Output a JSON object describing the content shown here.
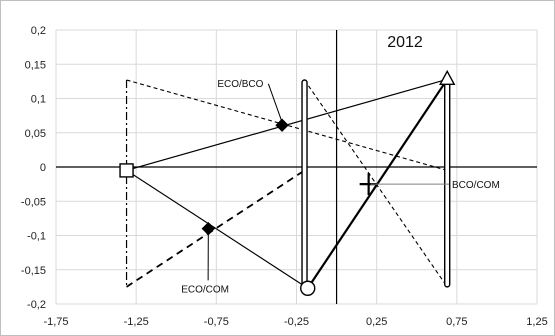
{
  "chart_data": {
    "type": "scatter",
    "title": "2012",
    "xlabel": "",
    "ylabel": "",
    "xlim": [
      -1.75,
      1.25
    ],
    "ylim": [
      -0.2,
      0.2
    ],
    "x_ticks": [
      "-1,75",
      "-1,25",
      "-0,75",
      "-0,25",
      "0,25",
      "0,75",
      "1,25"
    ],
    "x_tick_values": [
      -1.75,
      -1.25,
      -0.75,
      -0.25,
      0.25,
      0.75,
      1.25
    ],
    "y_ticks": [
      "0,2",
      "0,15",
      "0,1",
      "0,05",
      "0",
      "-0,05",
      "-0,1",
      "-0,15",
      "-0,2"
    ],
    "y_tick_values": [
      0.2,
      0.15,
      0.1,
      0.05,
      0,
      -0.05,
      -0.1,
      -0.15,
      -0.2
    ],
    "grid": true,
    "axis_lines": {
      "x0": 0,
      "y0": 0
    },
    "segments": [
      {
        "x1": -1.31,
        "y1": -0.005,
        "x2": 0.69,
        "y2": 0.128,
        "style": "solid"
      },
      {
        "x1": -1.31,
        "y1": -0.005,
        "x2": -0.18,
        "y2": -0.177,
        "style": "solid"
      },
      {
        "x1": -0.18,
        "y1": -0.177,
        "x2": 0.69,
        "y2": 0.128,
        "style": "solid-thick"
      },
      {
        "x1": -1.31,
        "y1": 0.127,
        "x2": 0.69,
        "y2": -0.005,
        "style": "dashed"
      },
      {
        "x1": -1.31,
        "y1": -0.175,
        "x2": -0.2,
        "y2": -0.005,
        "style": "dashed-thick"
      },
      {
        "x1": -0.2,
        "y1": 0.127,
        "x2": 0.69,
        "y2": -0.175,
        "style": "dashed"
      },
      {
        "x1": -1.31,
        "y1": 0.127,
        "x2": -1.31,
        "y2": -0.175,
        "style": "dashdot"
      }
    ],
    "bars": [
      {
        "x": -0.2,
        "y_top": 0.127,
        "y_bottom": -0.175
      },
      {
        "x": 0.69,
        "y_top": 0.127,
        "y_bottom": -0.175
      }
    ],
    "points": [
      {
        "x": -1.31,
        "y": -0.005,
        "marker": "square"
      },
      {
        "x": 0.69,
        "y": 0.128,
        "marker": "triangle"
      },
      {
        "x": -0.18,
        "y": -0.177,
        "marker": "circle"
      },
      {
        "x": -0.34,
        "y": 0.061,
        "marker": "diamond"
      },
      {
        "x": -0.8,
        "y": -0.09,
        "marker": "diamond"
      },
      {
        "x": 0.2,
        "y": -0.025,
        "marker": "plus"
      }
    ],
    "annotations": [
      {
        "text": "ECO/BCO",
        "x": -0.34,
        "y": 0.061,
        "label_x": -0.6,
        "label_y": 0.117
      },
      {
        "text": "ECO/COM",
        "x": -0.8,
        "y": -0.09,
        "label_x": -0.82,
        "label_y": -0.183
      },
      {
        "text": "BCO/COM",
        "x": 0.2,
        "y": -0.025,
        "label_x": 0.72,
        "label_y": -0.025
      }
    ]
  }
}
